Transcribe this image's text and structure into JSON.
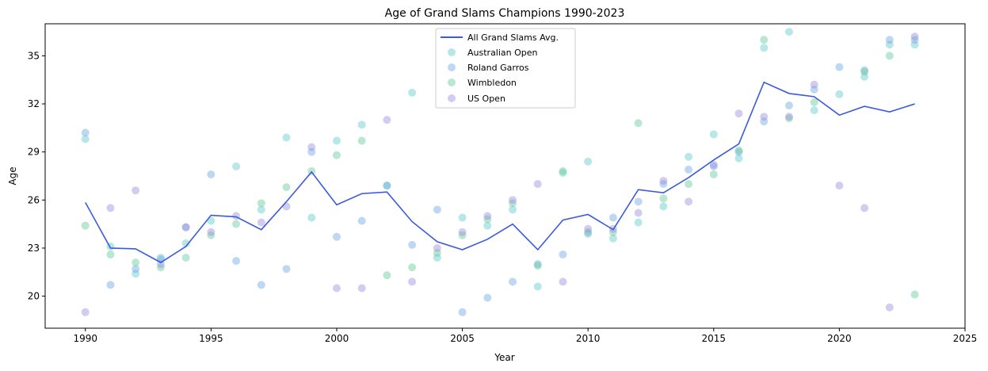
{
  "chart_data": {
    "type": "scatter",
    "title": "Age of Grand Slams Champions 1990-2023",
    "xlabel": "Year",
    "ylabel": "Age",
    "xlim": [
      1988.4,
      2025
    ],
    "ylim": [
      18.0,
      37.0
    ],
    "xticks": [
      1990,
      1995,
      2000,
      2005,
      2010,
      2015,
      2020,
      2025
    ],
    "yticks": [
      20,
      23,
      26,
      29,
      32,
      35
    ],
    "grid": false,
    "legend_position": "top-center",
    "x": [
      1990,
      1991,
      1992,
      1993,
      1994,
      1995,
      1996,
      1997,
      1998,
      1999,
      2000,
      2001,
      2002,
      2003,
      2004,
      2005,
      2006,
      2007,
      2008,
      2009,
      2010,
      2011,
      2012,
      2013,
      2014,
      2015,
      2016,
      2017,
      2018,
      2019,
      2020,
      2021,
      2022,
      2023
    ],
    "series": [
      {
        "name": "All Grand Slams Avg.",
        "kind": "line",
        "color": "#3b5bdb",
        "values": [
          25.85,
          23.0,
          22.95,
          22.1,
          23.1,
          25.05,
          24.95,
          24.15,
          25.9,
          27.75,
          25.7,
          26.4,
          26.5,
          24.65,
          23.4,
          22.9,
          23.55,
          24.5,
          22.9,
          24.75,
          25.1,
          24.15,
          26.65,
          26.45,
          27.4,
          28.5,
          29.5,
          33.35,
          32.65,
          32.45,
          31.3,
          31.85,
          31.5,
          32.0
        ]
      },
      {
        "name": "Australian Open",
        "kind": "scatter",
        "color": "#5fc9c9",
        "values": [
          29.8,
          23.1,
          21.4,
          22.4,
          23.3,
          24.7,
          28.1,
          25.4,
          29.9,
          24.9,
          29.7,
          30.7,
          26.9,
          32.7,
          22.4,
          24.9,
          24.4,
          25.4,
          20.6,
          27.7,
          28.4,
          23.6,
          24.6,
          25.6,
          28.7,
          30.1,
          28.6,
          35.5,
          36.5,
          31.6,
          32.6,
          33.7,
          35.7,
          35.7
        ]
      },
      {
        "name": "Roland Garros",
        "kind": "scatter",
        "color": "#6fa9e0",
        "values": [
          30.2,
          20.7,
          21.7,
          22.3,
          24.3,
          27.6,
          22.2,
          20.7,
          21.7,
          29.0,
          23.7,
          24.7,
          26.9,
          23.2,
          25.4,
          19.0,
          19.9,
          20.9,
          22.0,
          22.6,
          23.9,
          24.9,
          25.9,
          27.0,
          27.9,
          28.1,
          29.0,
          30.9,
          31.9,
          32.9,
          34.3,
          34.1,
          36.0,
          36.0
        ]
      },
      {
        "name": "Wimbledon",
        "kind": "scatter",
        "color": "#66c99a",
        "values": [
          24.4,
          22.6,
          22.1,
          21.8,
          22.4,
          23.8,
          24.5,
          25.8,
          26.8,
          27.8,
          28.8,
          29.7,
          21.3,
          21.8,
          22.7,
          23.8,
          24.8,
          25.8,
          21.9,
          27.8,
          24.0,
          24.0,
          30.8,
          26.1,
          27.0,
          27.6,
          29.1,
          36.0,
          31.1,
          32.1,
          null,
          34.0,
          35.0,
          20.1
        ]
      },
      {
        "name": "US Open",
        "kind": "scatter",
        "color": "#9b8fe0",
        "values": [
          19.0,
          25.5,
          26.6,
          22.0,
          24.3,
          24.0,
          25.0,
          24.6,
          25.6,
          29.3,
          20.5,
          20.5,
          31.0,
          20.9,
          23.0,
          24.0,
          25.0,
          26.0,
          27.0,
          20.9,
          24.2,
          24.2,
          25.2,
          27.2,
          25.9,
          28.2,
          31.4,
          31.2,
          31.2,
          33.2,
          26.9,
          25.5,
          19.3,
          36.2
        ]
      }
    ]
  }
}
